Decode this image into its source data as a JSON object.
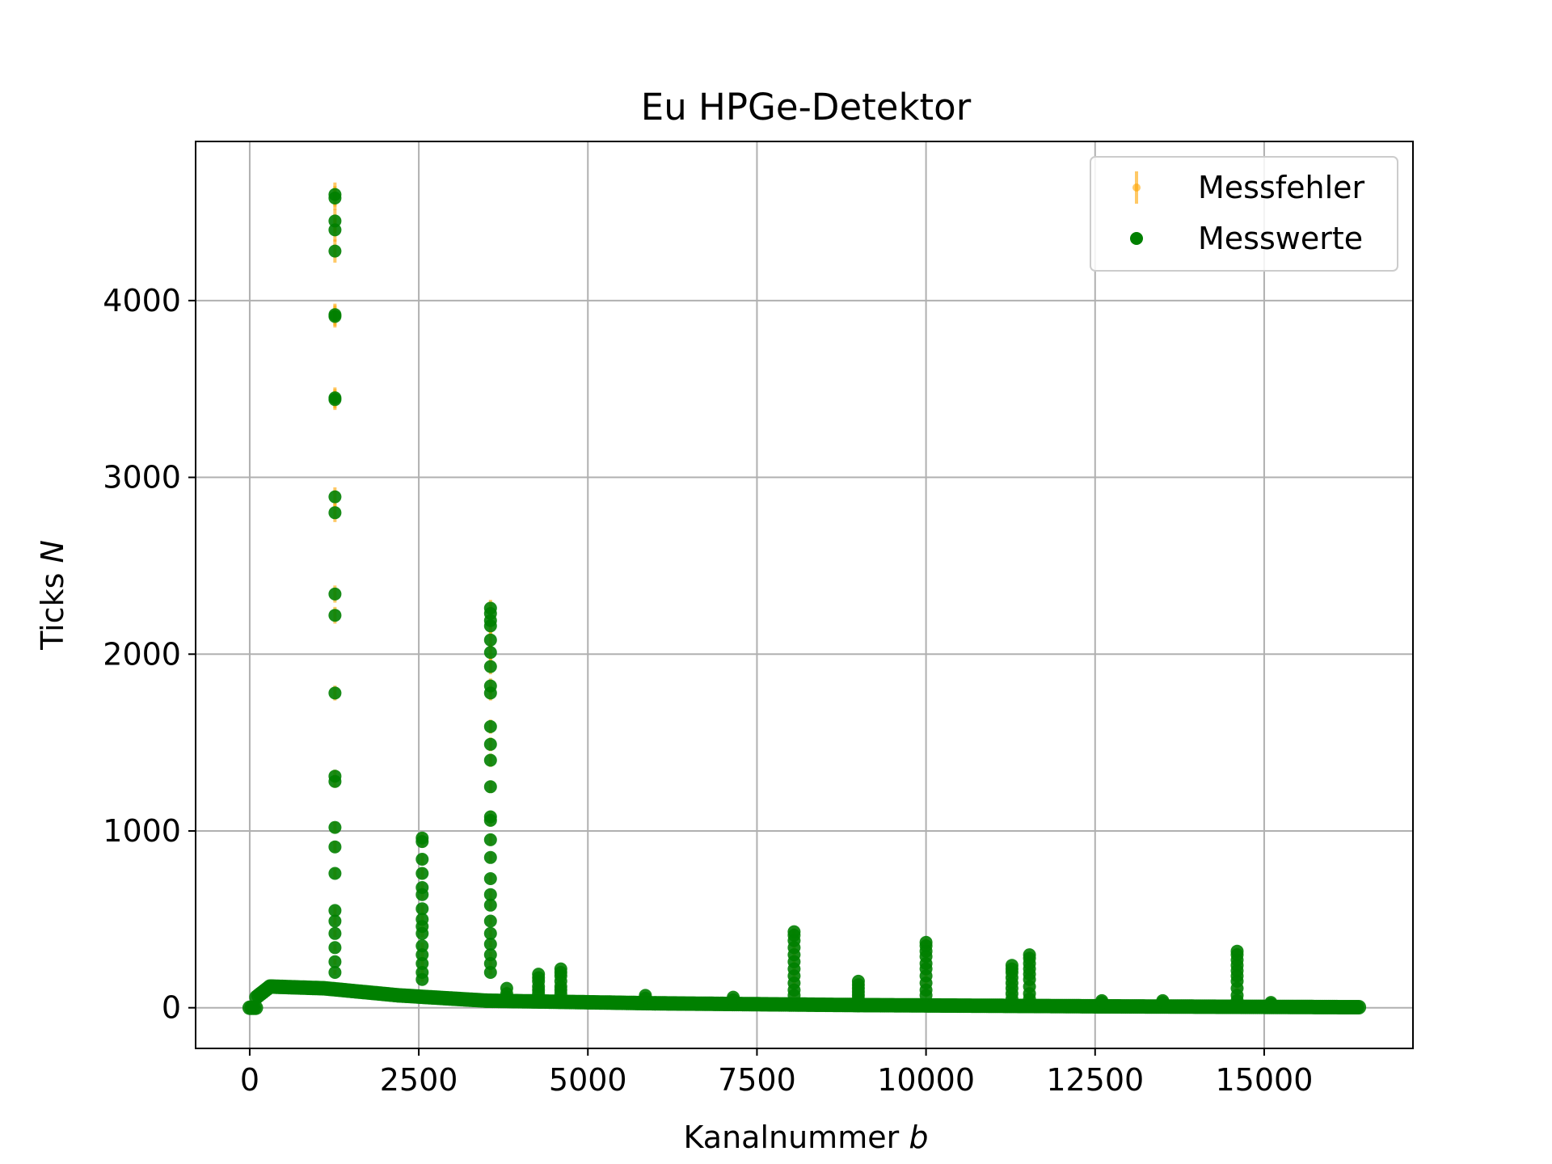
{
  "chart_data": {
    "type": "scatter",
    "title": "Eu HPGe-Detektor",
    "xlabel": "Kanalnummer",
    "xlabel_var": "b",
    "ylabel": "Ticks",
    "ylabel_var": "N",
    "xlim": [
      -800,
      17200
    ],
    "ylim": [
      -230,
      4900
    ],
    "xticks": [
      0,
      2500,
      5000,
      7500,
      10000,
      12500,
      15000
    ],
    "yticks": [
      0,
      1000,
      2000,
      3000,
      4000
    ],
    "grid": true,
    "legend_position": "top-right",
    "colors": {
      "points": "#008000",
      "errors": "#ffa500"
    },
    "series": [
      {
        "name": "Messfehler",
        "kind": "errorbar"
      },
      {
        "name": "Messwerte",
        "kind": "points"
      }
    ],
    "background_segments": [
      {
        "x": [
          0,
          100
        ],
        "y": [
          0,
          0
        ]
      },
      {
        "x": [
          100,
          300
        ],
        "y": [
          60,
          120
        ]
      },
      {
        "x": [
          300,
          1100
        ],
        "y": [
          120,
          110
        ]
      },
      {
        "x": [
          1100,
          2200
        ],
        "y": [
          110,
          70
        ]
      },
      {
        "x": [
          2200,
          3500
        ],
        "y": [
          70,
          40
        ]
      },
      {
        "x": [
          3500,
          6000
        ],
        "y": [
          40,
          25
        ]
      },
      {
        "x": [
          6000,
          9000
        ],
        "y": [
          25,
          15
        ]
      },
      {
        "x": [
          9000,
          12500
        ],
        "y": [
          15,
          8
        ]
      },
      {
        "x": [
          12500,
          16400
        ],
        "y": [
          8,
          3
        ]
      }
    ],
    "peaks": [
      {
        "x": 1260,
        "values": [
          4600,
          4580,
          4450,
          4400,
          4280,
          3920,
          3910,
          3450,
          3440,
          2890,
          2800,
          2340,
          2220,
          1780,
          1310,
          1280,
          1020,
          910,
          760,
          550,
          490,
          420,
          340,
          260,
          200
        ]
      },
      {
        "x": 2550,
        "values": [
          960,
          940,
          840,
          760,
          680,
          640,
          560,
          500,
          460,
          420,
          350,
          300,
          250,
          200,
          160
        ]
      },
      {
        "x": 3560,
        "values": [
          2260,
          2230,
          2190,
          2160,
          2080,
          2010,
          1930,
          1820,
          1780,
          1590,
          1490,
          1400,
          1250,
          1080,
          1060,
          950,
          850,
          730,
          640,
          580,
          490,
          420,
          360,
          300,
          250,
          200
        ]
      },
      {
        "x": 3800,
        "values": [
          110,
          80,
          60
        ]
      },
      {
        "x": 4270,
        "values": [
          190,
          170,
          150,
          120,
          100,
          80
        ]
      },
      {
        "x": 4600,
        "values": [
          220,
          200,
          180,
          150,
          120,
          100,
          80
        ]
      },
      {
        "x": 5850,
        "values": [
          70,
          55
        ]
      },
      {
        "x": 7150,
        "values": [
          60,
          45
        ]
      },
      {
        "x": 8050,
        "values": [
          430,
          410,
          380,
          340,
          300,
          260,
          220,
          180,
          140,
          100,
          70
        ]
      },
      {
        "x": 9000,
        "values": [
          150,
          130,
          110,
          90,
          70,
          50
        ]
      },
      {
        "x": 10000,
        "values": [
          370,
          350,
          320,
          290,
          250,
          220,
          180,
          140,
          100,
          70
        ]
      },
      {
        "x": 11270,
        "values": [
          240,
          220,
          200,
          170,
          140,
          110,
          80,
          50
        ]
      },
      {
        "x": 11530,
        "values": [
          300,
          280,
          250,
          220,
          190,
          160,
          120,
          80,
          50
        ]
      },
      {
        "x": 12600,
        "values": [
          40,
          30
        ]
      },
      {
        "x": 13500,
        "values": [
          40,
          30
        ]
      },
      {
        "x": 14600,
        "values": [
          320,
          300,
          270,
          240,
          210,
          180,
          150,
          110,
          70,
          40
        ]
      },
      {
        "x": 15100,
        "values": [
          30,
          20
        ]
      }
    ]
  }
}
